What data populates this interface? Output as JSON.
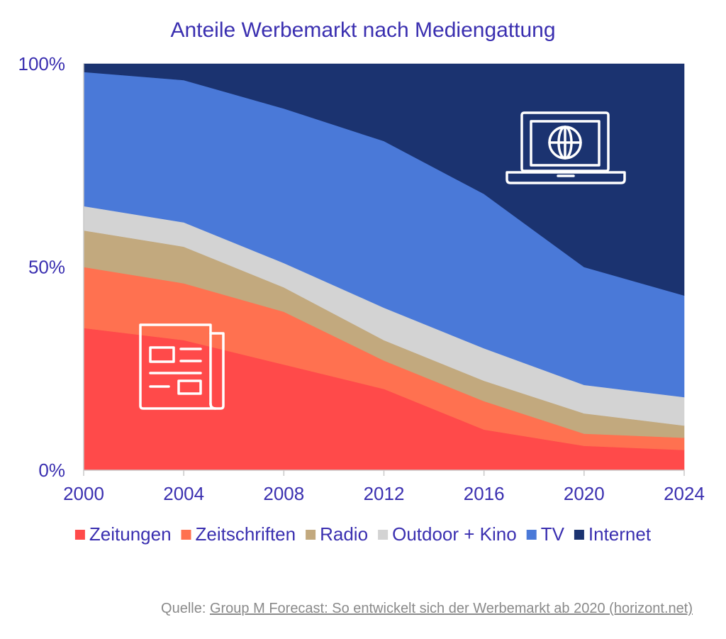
{
  "chart_data": {
    "type": "area",
    "stacked": true,
    "normalized": true,
    "title": "Anteile Werbemarkt nach Mediengattung",
    "x": [
      2000,
      2004,
      2008,
      2012,
      2016,
      2020,
      2024
    ],
    "x_tick_labels": [
      "2000",
      "2004",
      "2008",
      "2012",
      "2016",
      "2020",
      "2024"
    ],
    "y_tick_labels": [
      "0%",
      "50%",
      "100%"
    ],
    "ylim": [
      0,
      100
    ],
    "y_unit": "%",
    "grid": false,
    "legend_position": "bottom",
    "series": [
      {
        "name": "Zeitungen",
        "color": "#ff4a4a",
        "values": [
          35,
          32,
          26,
          20,
          10,
          6,
          5
        ]
      },
      {
        "name": "Zeitschriften",
        "color": "#ff7150",
        "values": [
          15,
          14,
          13,
          7,
          7,
          3,
          3
        ]
      },
      {
        "name": "Radio",
        "color": "#c2a97e",
        "values": [
          9,
          9,
          6,
          5,
          5,
          5,
          3
        ]
      },
      {
        "name": "Outdoor + Kino",
        "color": "#d3d3d3",
        "values": [
          6,
          6,
          6,
          8,
          8,
          7,
          7
        ]
      },
      {
        "name": "TV",
        "color": "#4a79d8",
        "values": [
          33,
          35,
          38,
          41,
          38,
          29,
          25
        ]
      },
      {
        "name": "Internet",
        "color": "#1b3370",
        "values": [
          2,
          4,
          11,
          19,
          32,
          50,
          57
        ]
      }
    ],
    "icons": [
      "newspaper-icon",
      "laptop-globe-icon"
    ]
  },
  "source": {
    "prefix": "Quelle: ",
    "link_text": "Group M Forecast: So entwickelt sich der Werbemarkt ab 2020 (horizont.net)"
  }
}
